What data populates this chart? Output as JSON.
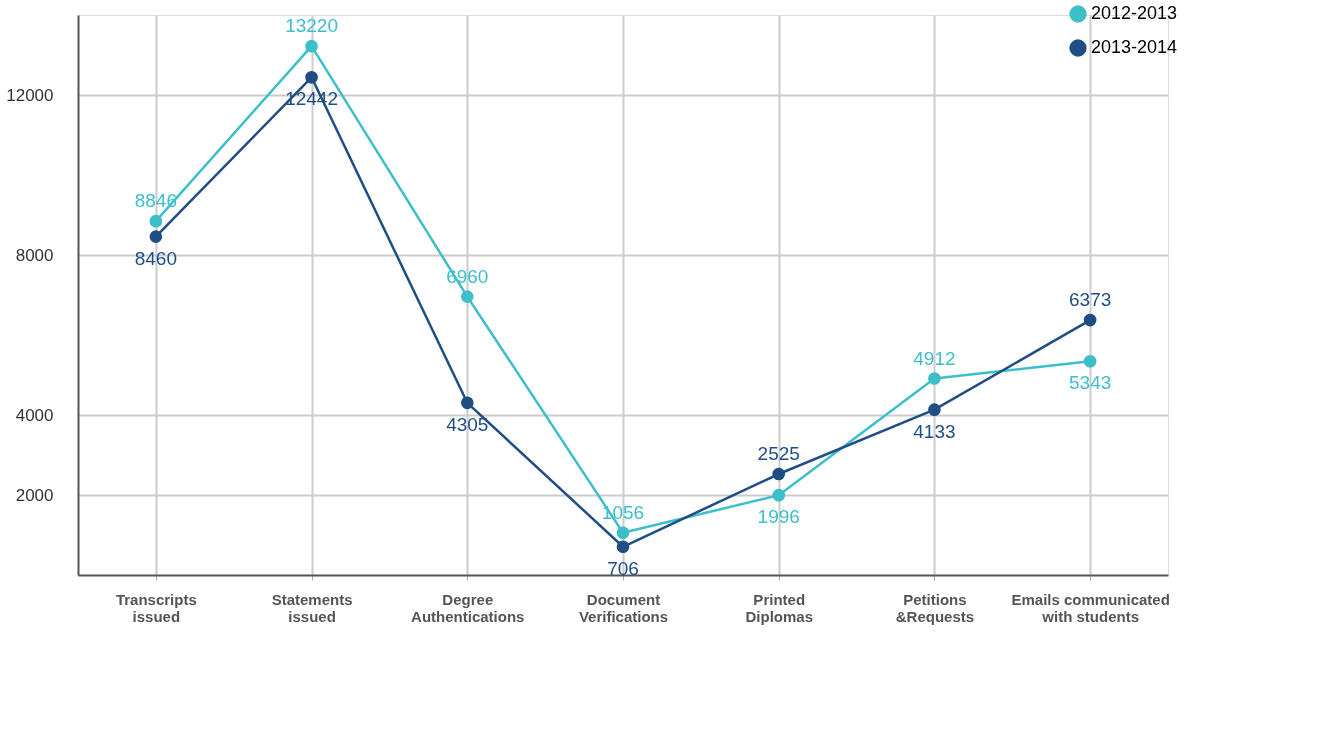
{
  "chart_data": {
    "type": "line",
    "categories": [
      "Transcripts\nissued",
      "Statements\nissued",
      "Degree\nAuthentications",
      "Document\nVerifications",
      "Printed\nDiplomas",
      "Petitions\n&Requests",
      "Emails  communicated\nwith  students"
    ],
    "series": [
      {
        "name": "2012-2013",
        "color": "#3dbfca",
        "values": [
          8846,
          13220,
          6960,
          1056,
          1996,
          4912,
          5343
        ]
      },
      {
        "name": "2013-2014",
        "color": "#1f4e85",
        "values": [
          8460,
          12442,
          4305,
          706,
          2525,
          4133,
          6373
        ]
      }
    ],
    "ylim": [
      0,
      14000
    ],
    "yticks": [
      2000,
      4000,
      8000,
      12000
    ],
    "grid": true,
    "legend": "top right",
    "marker": "circle",
    "line_style": "solid",
    "data_labels": true
  }
}
